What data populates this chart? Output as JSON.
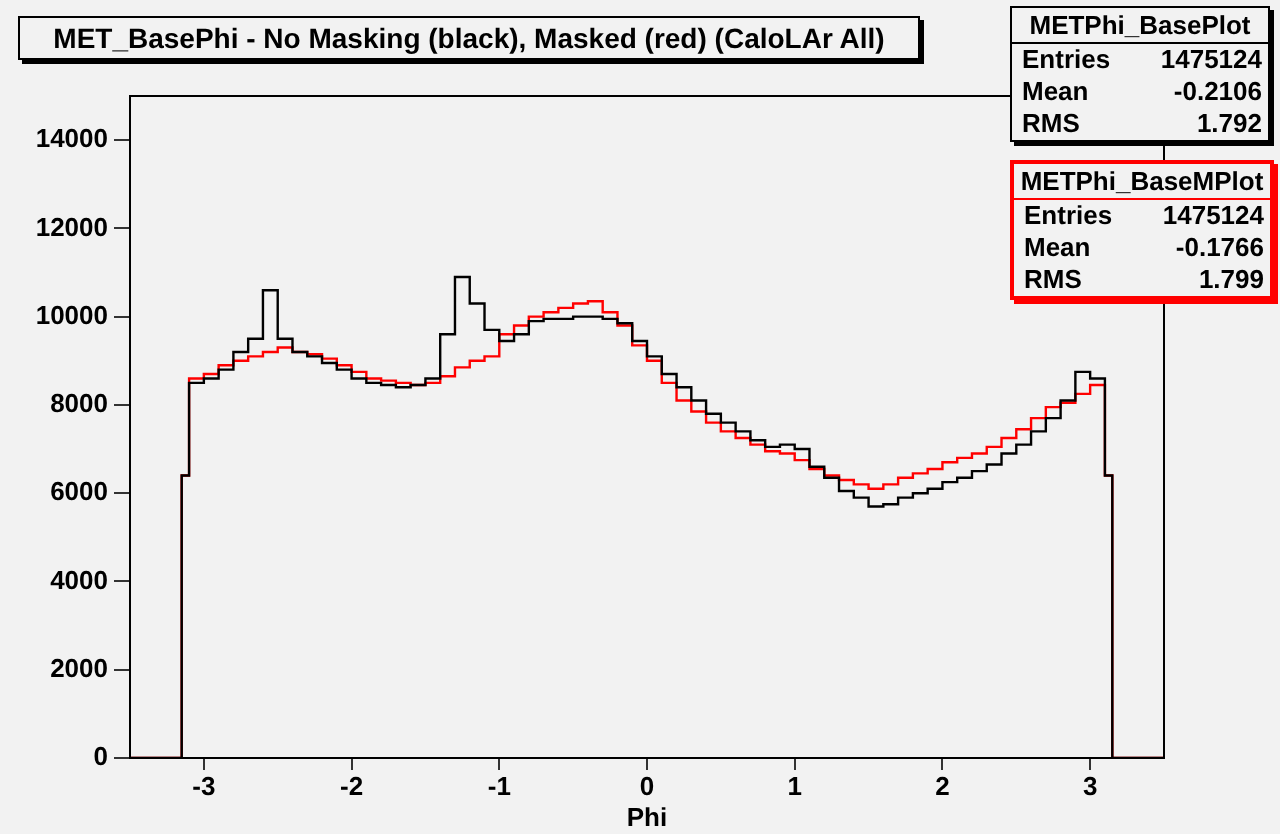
{
  "chart_data": {
    "type": "histogram",
    "title": "MET_BasePhi - No Masking (black), Masked (red) (CaloLAr All)",
    "xlabel": "Phi",
    "bins": [
      -3.5,
      -3.15,
      -3.1,
      -3.0,
      -2.9,
      -2.8,
      -2.7,
      -2.6,
      -2.5,
      -2.4,
      -2.3,
      -2.2,
      -2.1,
      -2.0,
      -1.9,
      -1.8,
      -1.7,
      -1.6,
      -1.5,
      -1.4,
      -1.3,
      -1.2,
      -1.1,
      -1.0,
      -0.9,
      -0.8,
      -0.7,
      -0.6,
      -0.5,
      -0.4,
      -0.3,
      -0.2,
      -0.1,
      0.0,
      0.1,
      0.2,
      0.3,
      0.4,
      0.5,
      0.6,
      0.7,
      0.8,
      0.9,
      1.0,
      1.1,
      1.2,
      1.3,
      1.4,
      1.5,
      1.6,
      1.7,
      1.8,
      1.9,
      2.0,
      2.1,
      2.2,
      2.3,
      2.4,
      2.5,
      2.6,
      2.7,
      2.8,
      2.9,
      3.0,
      3.1,
      3.15,
      3.5
    ],
    "series": [
      {
        "color": "#000000",
        "values": [
          0,
          6400,
          8500,
          8600,
          8800,
          9200,
          9500,
          10600,
          9500,
          9200,
          9100,
          8950,
          8800,
          8600,
          8500,
          8450,
          8400,
          8450,
          8600,
          9600,
          10900,
          10300,
          9700,
          9450,
          9600,
          9900,
          9950,
          9950,
          10000,
          10000,
          9950,
          9850,
          9450,
          9100,
          8700,
          8400,
          8100,
          7800,
          7600,
          7400,
          7200,
          7050,
          7100,
          7000,
          6600,
          6350,
          6050,
          5900,
          5700,
          5750,
          5900,
          6000,
          6100,
          6250,
          6350,
          6500,
          6650,
          6900,
          7100,
          7400,
          7700,
          8100,
          8750,
          8600,
          6400,
          0
        ]
      },
      {
        "color": "#ff0000",
        "values": [
          0,
          6400,
          8600,
          8700,
          8900,
          9000,
          9100,
          9200,
          9300,
          9200,
          9150,
          9050,
          8900,
          8750,
          8600,
          8550,
          8500,
          8450,
          8500,
          8650,
          8850,
          9000,
          9100,
          9600,
          9800,
          10000,
          10100,
          10200,
          10300,
          10350,
          10100,
          9800,
          9350,
          9000,
          8500,
          8100,
          7850,
          7600,
          7400,
          7250,
          7100,
          6950,
          6900,
          6750,
          6550,
          6400,
          6300,
          6200,
          6100,
          6200,
          6350,
          6450,
          6550,
          6700,
          6800,
          6900,
          7050,
          7250,
          7450,
          7700,
          7950,
          8050,
          8250,
          8450,
          6400,
          0
        ]
      }
    ],
    "xlim": [
      -3.5,
      3.5
    ],
    "xticks": [
      -3,
      -2,
      -1,
      0,
      1,
      2,
      3
    ],
    "ylim": [
      0,
      15000
    ],
    "yticks": [
      0,
      2000,
      4000,
      6000,
      8000,
      10000,
      12000,
      14000
    ],
    "grid": false,
    "legend": false,
    "annotations": [
      "METPhi_BasePlot",
      "Entries 1475124",
      "Mean -0.2106",
      "RMS 1.792",
      "METPhi_BaseMPlot",
      "Entries 1475124",
      "Mean -0.1766",
      "RMS 1.799"
    ]
  }
}
